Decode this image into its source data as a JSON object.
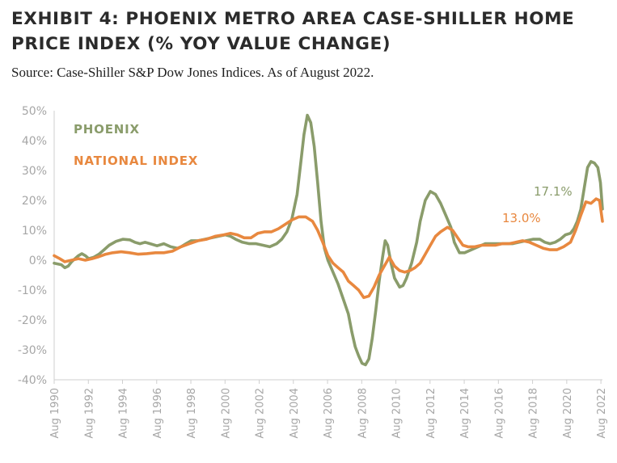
{
  "header": {
    "title": "EXHIBIT 4: PHOENIX METRO AREA CASE-SHILLER HOME PRICE INDEX (% YOY VALUE CHANGE)",
    "subtitle": "Source: Case-Shiller S&P Dow Jones Indices. As of August 2022."
  },
  "chart_data": {
    "type": "line",
    "title": "EXHIBIT 4: PHOENIX METRO AREA CASE-SHILLER HOME PRICE INDEX (% YOY VALUE CHANGE)",
    "xlabel": "",
    "ylabel": "",
    "ylim": [
      -40,
      50
    ],
    "xlim": [
      1990.58,
      2022.67
    ],
    "yticks": [
      50,
      40,
      30,
      20,
      10,
      0,
      -10,
      -20,
      -30,
      -40
    ],
    "ytick_labels": [
      "50%",
      "40%",
      "30%",
      "20%",
      "10%",
      "0%",
      "-10%",
      "-20%",
      "-30%",
      "-40%"
    ],
    "xticks": [
      1990.58,
      1992.58,
      1994.58,
      1996.58,
      1998.58,
      2000.58,
      2002.58,
      2004.58,
      2006.58,
      2008.58,
      2010.58,
      2012.58,
      2014.58,
      2016.58,
      2018.58,
      2020.58,
      2022.58
    ],
    "xtick_labels": [
      "Aug 1990",
      "Aug 1992",
      "Aug 1994",
      "Aug 1996",
      "Aug 1998",
      "Aug 2000",
      "Aug 2002",
      "Aug 2004",
      "Aug 2006",
      "Aug 2008",
      "Aug 2010",
      "Aug 2012",
      "Aug 2014",
      "Aug 2016",
      "Aug 2018",
      "Aug 2020",
      "Aug 2022"
    ],
    "grid": false,
    "legend": {
      "placement": "top-left",
      "entries": [
        "PHOENIX",
        "NATIONAL INDEX"
      ]
    },
    "colors": {
      "phoenix": "#8a9c6b",
      "national": "#e8883f",
      "ticks": "#a6a6a6",
      "axis": "#cfcfcf"
    },
    "series": [
      {
        "name": "PHOENIX",
        "color": "#8a9c6b",
        "end_label": "17.1%",
        "points": [
          [
            1990.58,
            -1
          ],
          [
            1991.0,
            -1.5
          ],
          [
            1991.2,
            -2.5
          ],
          [
            1991.4,
            -2
          ],
          [
            1991.6,
            -0.5
          ],
          [
            1991.8,
            0.5
          ],
          [
            1992.0,
            1.5
          ],
          [
            1992.2,
            2.2
          ],
          [
            1992.4,
            1.5
          ],
          [
            1992.6,
            0.5
          ],
          [
            1992.9,
            1
          ],
          [
            1993.2,
            2
          ],
          [
            1993.5,
            3.5
          ],
          [
            1993.8,
            5
          ],
          [
            1994.2,
            6.3
          ],
          [
            1994.6,
            7
          ],
          [
            1995.0,
            6.8
          ],
          [
            1995.3,
            6
          ],
          [
            1995.6,
            5.5
          ],
          [
            1995.9,
            6
          ],
          [
            1996.2,
            5.5
          ],
          [
            1996.6,
            4.8
          ],
          [
            1997.0,
            5.5
          ],
          [
            1997.4,
            4.5
          ],
          [
            1997.8,
            4
          ],
          [
            1998.0,
            4.5
          ],
          [
            1998.3,
            5.5
          ],
          [
            1998.6,
            6.5
          ],
          [
            1999.0,
            6.5
          ],
          [
            1999.4,
            7
          ],
          [
            1999.8,
            7.5
          ],
          [
            2000.2,
            8
          ],
          [
            2000.6,
            8.5
          ],
          [
            2000.9,
            8
          ],
          [
            2001.2,
            7
          ],
          [
            2001.6,
            6
          ],
          [
            2002.0,
            5.5
          ],
          [
            2002.4,
            5.5
          ],
          [
            2002.8,
            5
          ],
          [
            2003.2,
            4.5
          ],
          [
            2003.6,
            5.5
          ],
          [
            2003.9,
            7
          ],
          [
            2004.2,
            9.5
          ],
          [
            2004.5,
            14
          ],
          [
            2004.8,
            22
          ],
          [
            2005.0,
            32
          ],
          [
            2005.2,
            42
          ],
          [
            2005.4,
            48.5
          ],
          [
            2005.6,
            46
          ],
          [
            2005.8,
            38
          ],
          [
            2006.0,
            26
          ],
          [
            2006.2,
            13
          ],
          [
            2006.4,
            4
          ],
          [
            2006.6,
            0
          ],
          [
            2006.9,
            -4
          ],
          [
            2007.2,
            -8
          ],
          [
            2007.5,
            -13
          ],
          [
            2007.8,
            -18
          ],
          [
            2008.0,
            -24
          ],
          [
            2008.2,
            -29
          ],
          [
            2008.4,
            -32
          ],
          [
            2008.6,
            -34.5
          ],
          [
            2008.8,
            -35
          ],
          [
            2009.0,
            -33
          ],
          [
            2009.2,
            -26
          ],
          [
            2009.4,
            -17
          ],
          [
            2009.6,
            -7
          ],
          [
            2009.8,
            1
          ],
          [
            2009.95,
            6.5
          ],
          [
            2010.1,
            5
          ],
          [
            2010.3,
            -1
          ],
          [
            2010.5,
            -6
          ],
          [
            2010.8,
            -9
          ],
          [
            2011.0,
            -8.5
          ],
          [
            2011.2,
            -6
          ],
          [
            2011.5,
            -1
          ],
          [
            2011.8,
            6
          ],
          [
            2012.0,
            13
          ],
          [
            2012.3,
            20
          ],
          [
            2012.6,
            23
          ],
          [
            2012.9,
            22
          ],
          [
            2013.2,
            19
          ],
          [
            2013.5,
            15
          ],
          [
            2013.8,
            11
          ],
          [
            2014.0,
            6
          ],
          [
            2014.3,
            2.5
          ],
          [
            2014.6,
            2.5
          ],
          [
            2015.0,
            3.5
          ],
          [
            2015.4,
            4.5
          ],
          [
            2015.8,
            5.5
          ],
          [
            2016.2,
            5.5
          ],
          [
            2016.6,
            5.5
          ],
          [
            2017.0,
            5.5
          ],
          [
            2017.4,
            5.5
          ],
          [
            2017.8,
            6
          ],
          [
            2018.2,
            6.5
          ],
          [
            2018.6,
            7
          ],
          [
            2019.0,
            7
          ],
          [
            2019.3,
            6
          ],
          [
            2019.6,
            5.5
          ],
          [
            2019.9,
            6
          ],
          [
            2020.2,
            7
          ],
          [
            2020.5,
            8.5
          ],
          [
            2020.8,
            9
          ],
          [
            2021.0,
            10.5
          ],
          [
            2021.2,
            13
          ],
          [
            2021.4,
            17
          ],
          [
            2021.6,
            24
          ],
          [
            2021.8,
            31
          ],
          [
            2022.0,
            33
          ],
          [
            2022.2,
            32.5
          ],
          [
            2022.4,
            31
          ],
          [
            2022.55,
            26
          ],
          [
            2022.67,
            17.1
          ]
        ]
      },
      {
        "name": "NATIONAL INDEX",
        "color": "#e8883f",
        "end_label": "13.0%",
        "points": [
          [
            1990.58,
            1.5
          ],
          [
            1990.9,
            0.5
          ],
          [
            1991.2,
            -0.5
          ],
          [
            1991.6,
            0
          ],
          [
            1992.0,
            0.5
          ],
          [
            1992.4,
            0
          ],
          [
            1992.8,
            0.5
          ],
          [
            1993.2,
            1.2
          ],
          [
            1993.6,
            2
          ],
          [
            1994.0,
            2.5
          ],
          [
            1994.5,
            2.8
          ],
          [
            1995.0,
            2.5
          ],
          [
            1995.5,
            2
          ],
          [
            1996.0,
            2.2
          ],
          [
            1996.5,
            2.5
          ],
          [
            1997.0,
            2.5
          ],
          [
            1997.5,
            3
          ],
          [
            1998.0,
            4.5
          ],
          [
            1998.5,
            5.5
          ],
          [
            1999.0,
            6.5
          ],
          [
            1999.5,
            7
          ],
          [
            2000.0,
            8
          ],
          [
            2000.5,
            8.5
          ],
          [
            2000.9,
            9
          ],
          [
            2001.3,
            8.5
          ],
          [
            2001.7,
            7.5
          ],
          [
            2002.1,
            7.5
          ],
          [
            2002.5,
            9
          ],
          [
            2002.9,
            9.5
          ],
          [
            2003.3,
            9.5
          ],
          [
            2003.7,
            10.5
          ],
          [
            2004.1,
            12
          ],
          [
            2004.5,
            13.5
          ],
          [
            2004.9,
            14.5
          ],
          [
            2005.3,
            14.5
          ],
          [
            2005.7,
            13
          ],
          [
            2006.0,
            10
          ],
          [
            2006.3,
            6
          ],
          [
            2006.6,
            1.5
          ],
          [
            2006.9,
            -1
          ],
          [
            2007.2,
            -2.5
          ],
          [
            2007.5,
            -4
          ],
          [
            2007.8,
            -7
          ],
          [
            2008.1,
            -8.5
          ],
          [
            2008.4,
            -10
          ],
          [
            2008.7,
            -12.5
          ],
          [
            2009.0,
            -12
          ],
          [
            2009.3,
            -9
          ],
          [
            2009.6,
            -5
          ],
          [
            2009.9,
            -2
          ],
          [
            2010.2,
            1
          ],
          [
            2010.5,
            -2
          ],
          [
            2010.8,
            -3.5
          ],
          [
            2011.1,
            -4
          ],
          [
            2011.4,
            -3.5
          ],
          [
            2011.7,
            -2.5
          ],
          [
            2012.0,
            -1
          ],
          [
            2012.3,
            2
          ],
          [
            2012.6,
            5
          ],
          [
            2012.9,
            8
          ],
          [
            2013.2,
            9.5
          ],
          [
            2013.6,
            11
          ],
          [
            2013.9,
            10
          ],
          [
            2014.2,
            7.5
          ],
          [
            2014.5,
            5
          ],
          [
            2014.8,
            4.5
          ],
          [
            2015.2,
            4.5
          ],
          [
            2015.6,
            5
          ],
          [
            2016.0,
            5
          ],
          [
            2016.4,
            5
          ],
          [
            2016.8,
            5.5
          ],
          [
            2017.2,
            5.5
          ],
          [
            2017.6,
            6
          ],
          [
            2018.0,
            6.5
          ],
          [
            2018.4,
            6
          ],
          [
            2018.8,
            5
          ],
          [
            2019.2,
            4
          ],
          [
            2019.6,
            3.5
          ],
          [
            2020.0,
            3.5
          ],
          [
            2020.4,
            4.5
          ],
          [
            2020.8,
            6
          ],
          [
            2021.1,
            10
          ],
          [
            2021.4,
            15
          ],
          [
            2021.7,
            19.5
          ],
          [
            2022.0,
            19
          ],
          [
            2022.3,
            20.5
          ],
          [
            2022.5,
            20
          ],
          [
            2022.67,
            13.0
          ]
        ]
      }
    ]
  }
}
